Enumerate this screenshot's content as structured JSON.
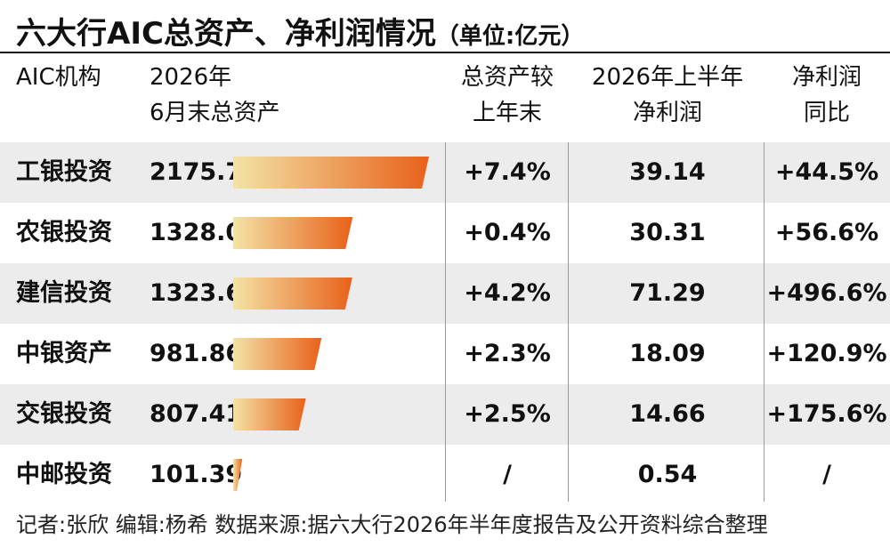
{
  "title": "六大行AIC总资产、净利润情况",
  "unit": "（单位:亿元）",
  "headers": {
    "institution": "AIC机构",
    "assets_line1": "2026年",
    "assets_line2": "6月末总资产",
    "growth_line1": "总资产较",
    "growth_line2": "上年末",
    "profit_line1": "2026年上半年",
    "profit_line2": "净利润",
    "yoy_line1": "净利润",
    "yoy_line2": "同比"
  },
  "chart_data": {
    "type": "table",
    "columns": [
      "AIC机构",
      "2026年6月末总资产",
      "总资产较上年末",
      "2026年上半年净利润",
      "净利润同比"
    ],
    "rows": [
      {
        "name": "工银投资",
        "assets": "2175.70",
        "assets_value": 2175.7,
        "growth": "+7.4%",
        "profit": "39.14",
        "yoy": "+44.5%"
      },
      {
        "name": "农银投资",
        "assets": "1328.01",
        "assets_value": 1328.01,
        "growth": "+0.4%",
        "profit": "30.31",
        "yoy": "+56.6%"
      },
      {
        "name": "建信投资",
        "assets": "1323.69",
        "assets_value": 1323.69,
        "growth": "+4.2%",
        "profit": "71.29",
        "yoy": "+496.6%"
      },
      {
        "name": "中银资产",
        "assets": "981.86",
        "assets_value": 981.86,
        "growth": "+2.3%",
        "profit": "18.09",
        "yoy": "+120.9%"
      },
      {
        "name": "交银投资",
        "assets": "807.41",
        "assets_value": 807.41,
        "growth": "+2.5%",
        "profit": "14.66",
        "yoy": "+175.6%"
      },
      {
        "name": "中邮投资",
        "assets": "101.39",
        "assets_value": 101.39,
        "growth": "/",
        "profit": "0.54",
        "yoy": "/"
      }
    ],
    "bar_gradient": [
      "#f3e3a6",
      "#e8611a"
    ]
  },
  "footer": "记者:张欣   编辑:杨希   数据来源:据六大行2026年半年度报告及公开资料综合整理"
}
